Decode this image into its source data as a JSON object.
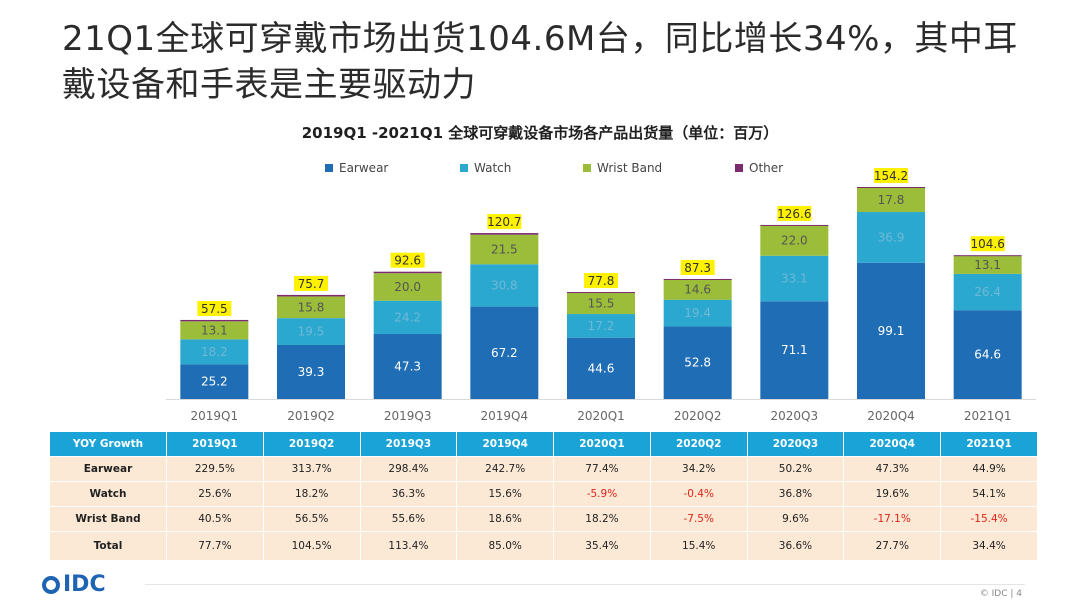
{
  "headline": "21Q1全球可穿戴市场出货104.6M台，同比增长34%，其中耳戴设备和手表是主要驱动力",
  "colors": {
    "earwear": "#1f6db5",
    "watch": "#2ba8cf",
    "wrist_band": "#9bbd3a",
    "other": "#7a2c6e",
    "total_highlight": "#fff200",
    "table_header": "#1aa3d6",
    "table_body": "#fbe9d5",
    "negative": "#e2231a"
  },
  "chart_data": {
    "type": "bar",
    "stacked": true,
    "title": "2019Q1 -2021Q1 全球可穿戴设备市场各产品出货量（单位：百万）",
    "categories": [
      "2019Q1",
      "2019Q2",
      "2019Q3",
      "2019Q4",
      "2020Q1",
      "2020Q2",
      "2020Q3",
      "2020Q4",
      "2021Q1"
    ],
    "series": [
      {
        "name": "Earwear",
        "values": [
          25.2,
          39.3,
          47.3,
          67.2,
          44.6,
          52.8,
          71.1,
          99.1,
          64.6
        ]
      },
      {
        "name": "Watch",
        "values": [
          18.2,
          19.5,
          24.2,
          30.8,
          17.2,
          19.4,
          33.1,
          36.9,
          26.4
        ]
      },
      {
        "name": "Wrist Band",
        "values": [
          13.1,
          15.8,
          20.0,
          21.5,
          15.5,
          14.6,
          22.0,
          17.8,
          13.1
        ]
      },
      {
        "name": "Other",
        "values": [
          1.0,
          1.1,
          1.1,
          1.2,
          0.5,
          0.5,
          0.4,
          0.4,
          0.5
        ]
      }
    ],
    "totals": [
      "57.5",
      "75.7",
      "92.6",
      "120.7",
      "77.8",
      "87.3",
      "126.6",
      "154.2",
      "104.6"
    ],
    "segment_labels": {
      "Earwear": [
        "25.2",
        "39.3",
        "47.3",
        "67.2",
        "44.6",
        "52.8",
        "71.1",
        "99.1",
        "64.6"
      ],
      "Watch": [
        "18.2",
        "19.5",
        "24.2",
        "30.8",
        "17.2",
        "19.4",
        "33.1",
        "36.9",
        "26.4"
      ],
      "Wrist Band": [
        "13.1",
        "15.8",
        "20.0",
        "21.5",
        "15.5",
        "14.6",
        "22.0",
        "17.8",
        "13.1"
      ]
    },
    "ylim": [
      0,
      160
    ],
    "legend_position": "top",
    "grid": false
  },
  "table": {
    "header_label": "YOY Growth",
    "columns": [
      "2019Q1",
      "2019Q2",
      "2019Q3",
      "2019Q4",
      "2020Q1",
      "2020Q2",
      "2020Q3",
      "2020Q4",
      "2021Q1"
    ],
    "rows": [
      {
        "label": "Earwear",
        "values": [
          "229.5%",
          "313.7%",
          "298.4%",
          "242.7%",
          "77.4%",
          "34.2%",
          "50.2%",
          "47.3%",
          "44.9%"
        ]
      },
      {
        "label": "Watch",
        "values": [
          "25.6%",
          "18.2%",
          "36.3%",
          "15.6%",
          "-5.9%",
          "-0.4%",
          "36.8%",
          "19.6%",
          "54.1%"
        ]
      },
      {
        "label": "Wrist Band",
        "values": [
          "40.5%",
          "56.5%",
          "55.6%",
          "18.6%",
          "18.2%",
          "-7.5%",
          "9.6%",
          "-17.1%",
          "-15.4%"
        ]
      },
      {
        "label": "Total",
        "values": [
          "77.7%",
          "104.5%",
          "113.4%",
          "85.0%",
          "35.4%",
          "15.4%",
          "36.6%",
          "27.7%",
          "34.4%"
        ]
      }
    ]
  },
  "footer": {
    "logo": "IDC",
    "copyright": "© IDC |",
    "page": "4"
  }
}
